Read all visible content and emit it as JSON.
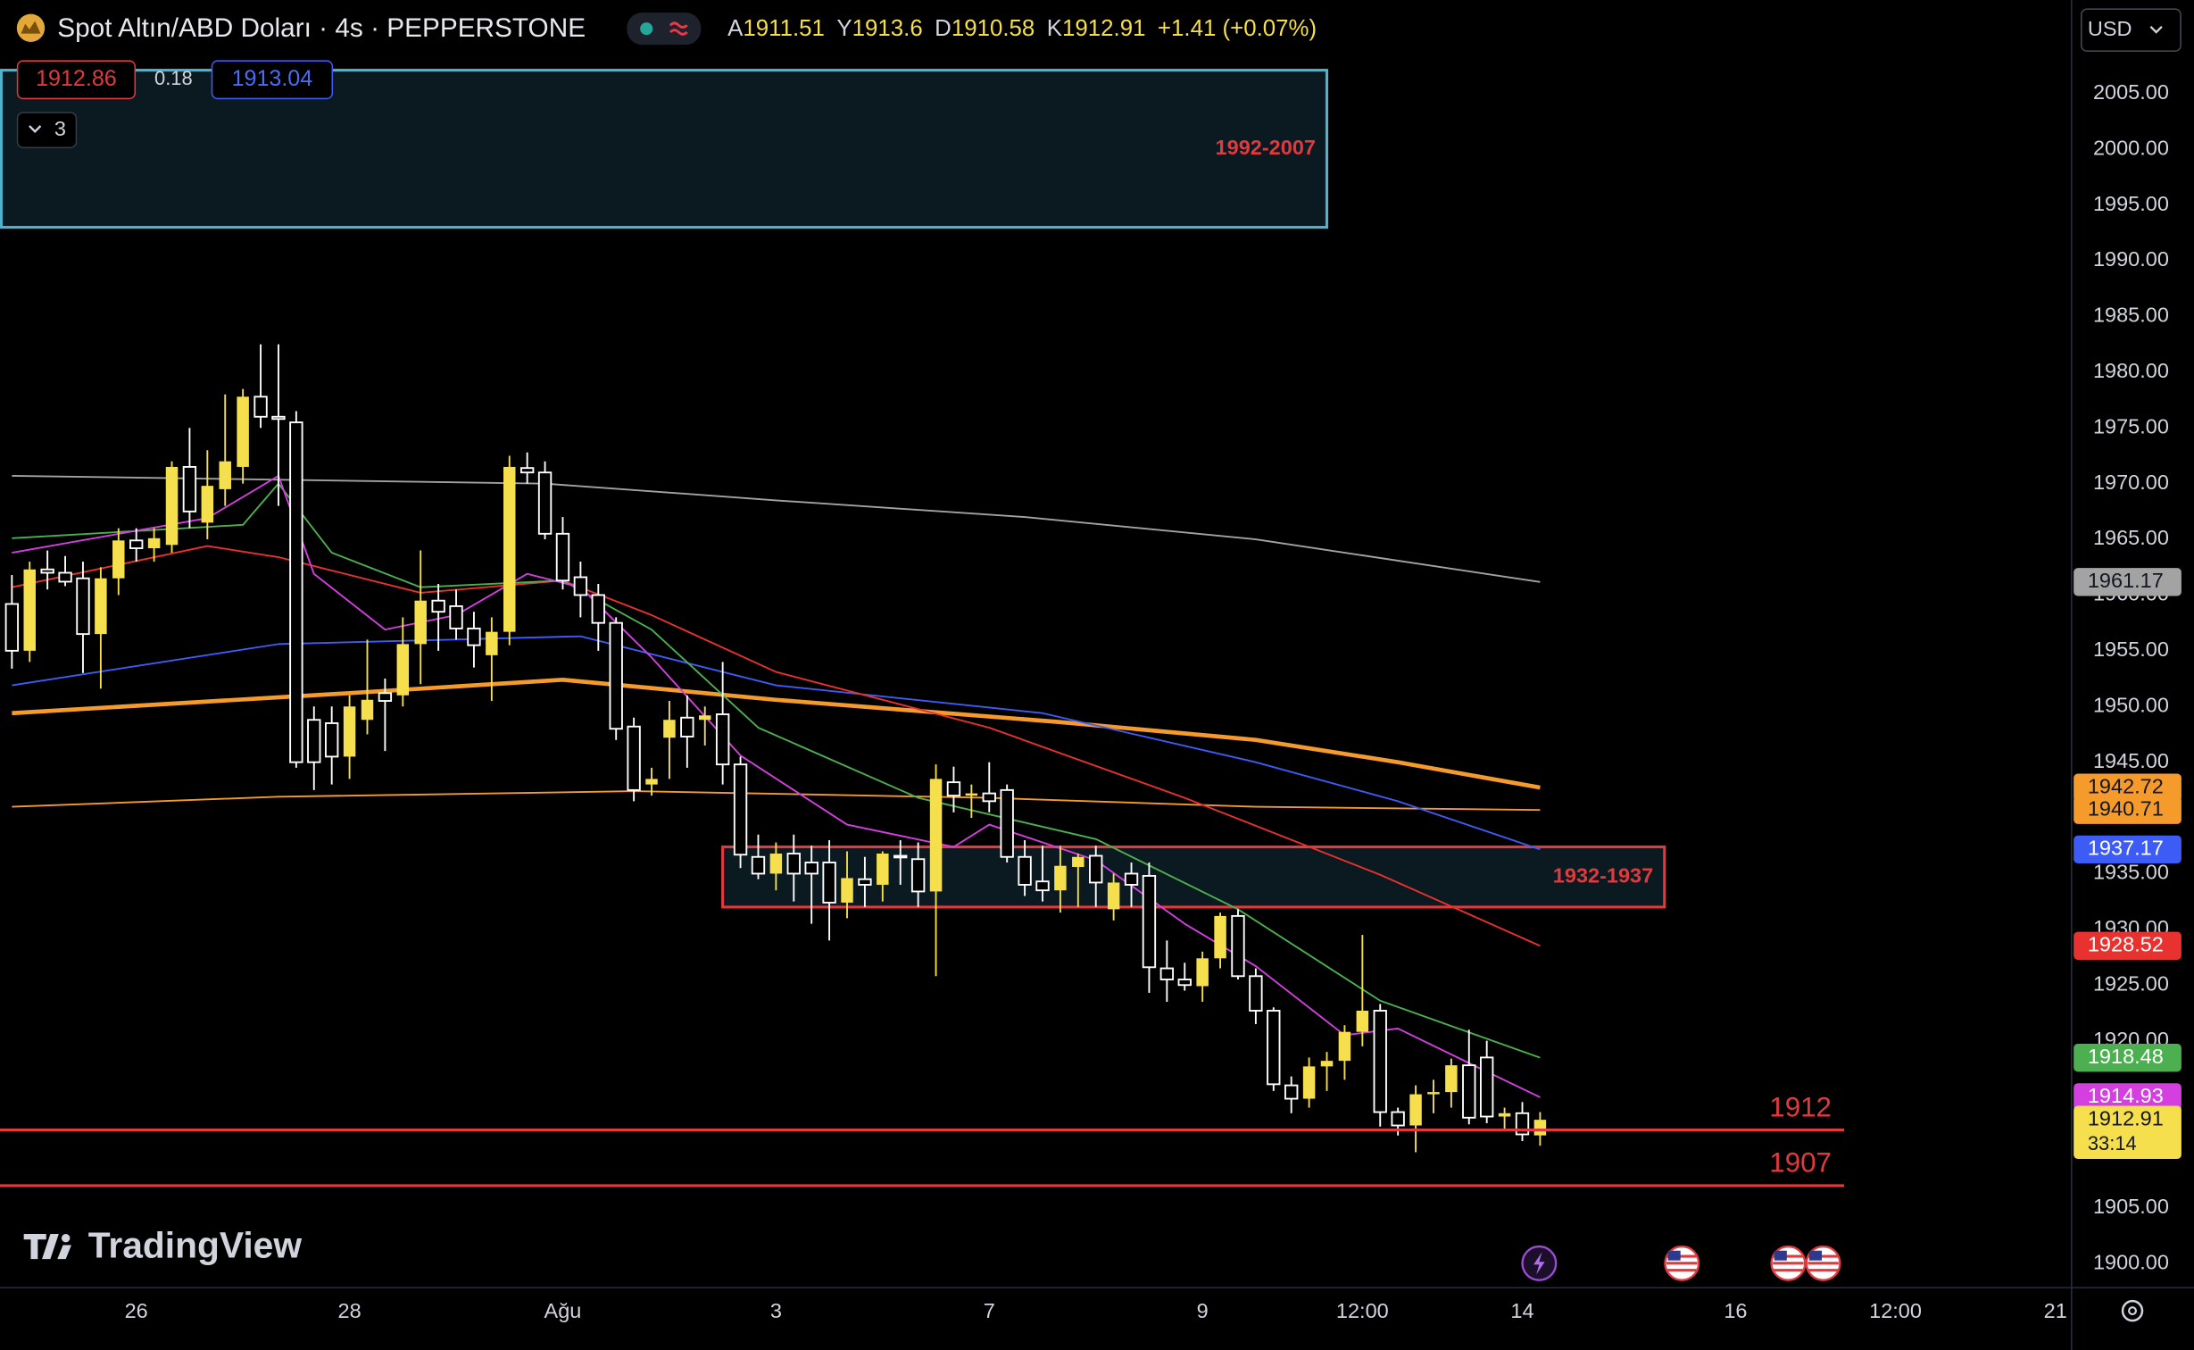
{
  "header": {
    "symbol": "Spot Altın/ABD Doları · 4s · PEPPERSTONE",
    "open_label": "A",
    "high_label": "Y",
    "low_label": "D",
    "close_label": "K",
    "change": "+1.41 (+0.07%)"
  },
  "ui": {
    "sell": 1912.86,
    "spread": 0.18,
    "buy": 1913.04,
    "indicators_count": 3,
    "currency": "USD",
    "logo": "TradingView",
    "countdown": "33:14"
  },
  "chart_data": {
    "type": "candlestick",
    "up_color": "#f5df4d",
    "down_color": "#ffffff",
    "xlim": [
      -0.67,
      115.87
    ],
    "ylim": [
      1897.9,
      2013.4
    ],
    "grid": false,
    "xticks": [
      {
        "value": 7,
        "label": "26"
      },
      {
        "value": 19,
        "label": "28"
      },
      {
        "value": 31,
        "label": "Ağu"
      },
      {
        "value": 43,
        "label": "3"
      },
      {
        "value": 55,
        "label": "7"
      },
      {
        "value": 67,
        "label": "9"
      },
      {
        "value": 76,
        "label": "12:00"
      },
      {
        "value": 85,
        "label": "14"
      },
      {
        "value": 97,
        "label": "16"
      },
      {
        "value": 106,
        "label": "12:00"
      },
      {
        "value": 115,
        "label": "21"
      }
    ],
    "yticks": [
      {
        "value": 1900,
        "label": "1900.00"
      },
      {
        "value": 1905,
        "label": "1905.00"
      },
      {
        "value": 1910,
        "label": "1910.00"
      },
      {
        "value": 1915,
        "label": "1915.00"
      },
      {
        "value": 1920,
        "label": "1920.00"
      },
      {
        "value": 1925,
        "label": "1925.00"
      },
      {
        "value": 1930,
        "label": "1930.00"
      },
      {
        "value": 1935,
        "label": "1935.00"
      },
      {
        "value": 1940,
        "label": "1940.00"
      },
      {
        "value": 1945,
        "label": "1945.00"
      },
      {
        "value": 1950,
        "label": "1950.00"
      },
      {
        "value": 1955,
        "label": "1955.00"
      },
      {
        "value": 1960,
        "label": "1960.00"
      },
      {
        "value": 1965,
        "label": "1965.00"
      },
      {
        "value": 1970,
        "label": "1970.00"
      },
      {
        "value": 1975,
        "label": "1975.00"
      },
      {
        "value": 1980,
        "label": "1980.00"
      },
      {
        "value": 1985,
        "label": "1985.00"
      },
      {
        "value": 1990,
        "label": "1990.00"
      },
      {
        "value": 1995,
        "label": "1995.00"
      },
      {
        "value": 2000,
        "label": "2000.00"
      },
      {
        "value": 2005,
        "label": "2005.00"
      }
    ],
    "x": [
      0,
      1,
      2,
      3,
      4,
      5,
      6,
      7,
      8,
      9,
      10,
      11,
      12,
      13,
      14,
      15,
      16,
      17,
      18,
      19,
      20,
      21,
      22,
      23,
      24,
      25,
      26,
      27,
      28,
      29,
      30,
      31,
      32,
      33,
      34,
      35,
      36,
      37,
      38,
      39,
      40,
      41,
      42,
      43,
      44,
      45,
      46,
      47,
      48,
      49,
      50,
      51,
      52,
      53,
      54,
      55,
      56,
      57,
      58,
      59,
      60,
      61,
      62,
      63,
      64,
      65,
      66,
      67,
      68,
      69,
      70,
      71,
      72,
      73,
      74,
      75,
      76,
      77,
      78,
      79,
      80,
      81,
      82,
      83,
      84,
      85,
      86
    ],
    "open": [
      1959.2,
      1955.0,
      1962.3,
      1962.0,
      1961.5,
      1956.5,
      1961.5,
      1964.9,
      1964.2,
      1964.5,
      1971.5,
      1966.5,
      1969.5,
      1971.5,
      1977.8,
      1976.0,
      1975.5,
      1948.8,
      1948.5,
      1945.5,
      1948.8,
      1951.2,
      1951.0,
      1955.6,
      1959.5,
      1959.0,
      1957.0,
      1954.6,
      1956.7,
      1971.4,
      1971.0,
      1965.5,
      1961.6,
      1960.0,
      1957.5,
      1948.2,
      1943.0,
      1947.2,
      1949.0,
      1948.8,
      1949.3,
      1944.8,
      1936.5,
      1935.0,
      1936.8,
      1936.0,
      1936.0,
      1932.4,
      1934.5,
      1934.0,
      1936.6,
      1936.3,
      1933.4,
      1943.2,
      1942.0,
      1942.2,
      1942.5,
      1936.5,
      1934.3,
      1933.5,
      1935.6,
      1936.6,
      1931.8,
      1935.0,
      1934.8,
      1926.5,
      1925.5,
      1924.9,
      1927.4,
      1931.2,
      1925.8,
      1922.7,
      1916.0,
      1914.8,
      1917.7,
      1918.2,
      1920.8,
      1922.7,
      1913.6,
      1912.4,
      1915.2,
      1915.4,
      1917.8,
      1918.5,
      1913.2,
      1913.5,
      1911.51
    ],
    "high": [
      1961.8,
      1963.0,
      1964.0,
      1963.5,
      1963.0,
      1962.5,
      1966.0,
      1966.0,
      1966.0,
      1972.0,
      1975.0,
      1973.0,
      1978.0,
      1978.5,
      1982.5,
      1982.5,
      1976.5,
      1950.0,
      1950.0,
      1951.0,
      1956.0,
      1952.5,
      1958.0,
      1964.0,
      1961.0,
      1960.5,
      1958.5,
      1958.0,
      1972.5,
      1972.8,
      1972.0,
      1967.0,
      1963.0,
      1961.0,
      1958.0,
      1949.0,
      1944.5,
      1950.5,
      1951.0,
      1950.0,
      1954.0,
      1945.5,
      1938.5,
      1937.8,
      1938.5,
      1937.5,
      1938.0,
      1937.0,
      1936.5,
      1937.0,
      1938.0,
      1937.8,
      1944.8,
      1944.6,
      1943.0,
      1945.0,
      1943.0,
      1938.0,
      1937.5,
      1937.5,
      1936.8,
      1937.5,
      1935.0,
      1936.0,
      1936.0,
      1929.0,
      1927.0,
      1928.0,
      1931.5,
      1931.8,
      1926.5,
      1923.0,
      1916.8,
      1918.5,
      1919.0,
      1921.4,
      1929.5,
      1923.3,
      1914.0,
      1916.0,
      1916.5,
      1918.4,
      1921.0,
      1920.0,
      1914.0,
      1914.5,
      1913.6
    ],
    "low": [
      1953.4,
      1954.0,
      1960.5,
      1960.8,
      1953.0,
      1951.6,
      1960.0,
      1963.0,
      1963.0,
      1963.8,
      1966.0,
      1965.0,
      1968.0,
      1970.0,
      1975.0,
      1968.0,
      1944.5,
      1942.5,
      1943.0,
      1943.5,
      1947.5,
      1946.0,
      1950.0,
      1952.0,
      1955.0,
      1956.0,
      1953.5,
      1950.5,
      1955.5,
      1970.0,
      1965.0,
      1960.5,
      1958.0,
      1955.0,
      1947.0,
      1941.5,
      1942.0,
      1943.5,
      1944.5,
      1946.5,
      1943.0,
      1935.5,
      1934.5,
      1933.5,
      1932.5,
      1930.5,
      1929.0,
      1931.0,
      1932.0,
      1932.5,
      1934.0,
      1932.0,
      1925.8,
      1940.5,
      1940.0,
      1940.5,
      1936.0,
      1933.0,
      1932.5,
      1931.5,
      1932.0,
      1932.0,
      1930.8,
      1932.0,
      1924.3,
      1923.5,
      1924.5,
      1923.5,
      1926.5,
      1925.5,
      1921.5,
      1915.5,
      1913.5,
      1914.0,
      1915.5,
      1916.5,
      1919.5,
      1912.3,
      1911.5,
      1910.0,
      1913.5,
      1914.0,
      1912.5,
      1912.6,
      1912.0,
      1911.0,
      1910.58
    ],
    "close": [
      1955.0,
      1962.3,
      1962.0,
      1961.2,
      1956.5,
      1961.5,
      1964.9,
      1964.2,
      1965.1,
      1971.5,
      1967.5,
      1969.8,
      1972.0,
      1977.8,
      1976.0,
      1975.8,
      1945.0,
      1945.0,
      1945.5,
      1950.0,
      1950.6,
      1950.5,
      1955.6,
      1959.5,
      1958.5,
      1957.0,
      1955.5,
      1956.7,
      1971.5,
      1971.0,
      1965.5,
      1961.3,
      1960.0,
      1957.5,
      1948.0,
      1942.5,
      1943.5,
      1948.8,
      1947.3,
      1949.2,
      1944.8,
      1936.7,
      1935.0,
      1936.8,
      1935.0,
      1935.0,
      1932.4,
      1934.6,
      1934.0,
      1936.8,
      1936.5,
      1933.4,
      1943.5,
      1942.0,
      1942.2,
      1941.5,
      1936.5,
      1934.0,
      1933.5,
      1935.7,
      1936.5,
      1934.2,
      1934.2,
      1934.0,
      1926.6,
      1925.5,
      1925.0,
      1927.4,
      1931.2,
      1925.8,
      1922.7,
      1916.1,
      1914.8,
      1917.7,
      1918.2,
      1920.8,
      1922.7,
      1913.6,
      1912.4,
      1915.2,
      1915.4,
      1917.8,
      1913.1,
      1913.2,
      1913.5,
      1911.6,
      1912.91
    ],
    "series": [
      {
        "color": "#a3a3a3",
        "linewidth": 1.2,
        "x": [
          0,
          30,
          43,
          57,
          70,
          86
        ],
        "values": [
          1970.7,
          1970.0,
          1968.5,
          1967.0,
          1965.0,
          1961.17
        ]
      },
      {
        "color": "#f59b2c",
        "linewidth": 3,
        "x": [
          0,
          19,
          31,
          43,
          59,
          70,
          78,
          86
        ],
        "values": [
          1949.4,
          1951.2,
          1952.4,
          1950.6,
          1948.6,
          1947.0,
          1945.0,
          1942.72
        ]
      },
      {
        "color": "#f59b2c",
        "linewidth": 1.2,
        "x": [
          0,
          15,
          35,
          55,
          70,
          86
        ],
        "values": [
          1941.0,
          1941.9,
          1942.4,
          1941.8,
          1941.0,
          1940.71
        ]
      },
      {
        "color": "#3d5cf5",
        "linewidth": 1.2,
        "x": [
          0,
          15,
          32,
          43,
          58,
          70,
          78,
          86
        ],
        "values": [
          1951.9,
          1955.6,
          1956.3,
          1951.9,
          1949.4,
          1945.0,
          1941.5,
          1937.17
        ]
      },
      {
        "color": "#e8322f",
        "linewidth": 1.2,
        "x": [
          0,
          11,
          15,
          23,
          31,
          36,
          43,
          55,
          66,
          77,
          86
        ],
        "values": [
          1960.7,
          1964.4,
          1963.4,
          1960.2,
          1961.3,
          1958.2,
          1953.1,
          1948.1,
          1941.8,
          1934.9,
          1928.52
        ]
      },
      {
        "color": "#4caf50",
        "linewidth": 1.2,
        "x": [
          0,
          13,
          15,
          18,
          23,
          31,
          36,
          42,
          51,
          61,
          69,
          77,
          86
        ],
        "values": [
          1965.1,
          1966.3,
          1970.0,
          1963.8,
          1960.7,
          1961.3,
          1956.9,
          1948.1,
          1941.8,
          1938.1,
          1931.8,
          1923.6,
          1918.48
        ]
      },
      {
        "color": "#d43fe0",
        "linewidth": 1.2,
        "x": [
          0,
          11,
          15,
          17,
          21,
          25,
          29,
          32,
          36,
          41,
          47,
          53,
          55,
          61,
          66,
          70,
          75,
          78,
          82,
          86
        ],
        "values": [
          1963.8,
          1966.9,
          1970.7,
          1961.9,
          1956.9,
          1958.2,
          1961.9,
          1960.7,
          1954.4,
          1945.6,
          1939.4,
          1937.4,
          1939.4,
          1936.2,
          1930.5,
          1926.7,
          1920.5,
          1921.1,
          1918.0,
          1914.93
        ]
      }
    ],
    "zones": [
      {
        "label": "1992-2007",
        "low": 1993.0,
        "high": 2007.1,
        "start": -0.6,
        "end": 74.0,
        "color": "#4fb3cf"
      },
      {
        "label": "1932-1937",
        "low": 1932.0,
        "high": 1937.4,
        "start": 40.0,
        "end": 93.0,
        "color": "#e0393e"
      }
    ],
    "hlines": [
      1912,
      1907
    ],
    "hline_color": "#e0393e"
  }
}
